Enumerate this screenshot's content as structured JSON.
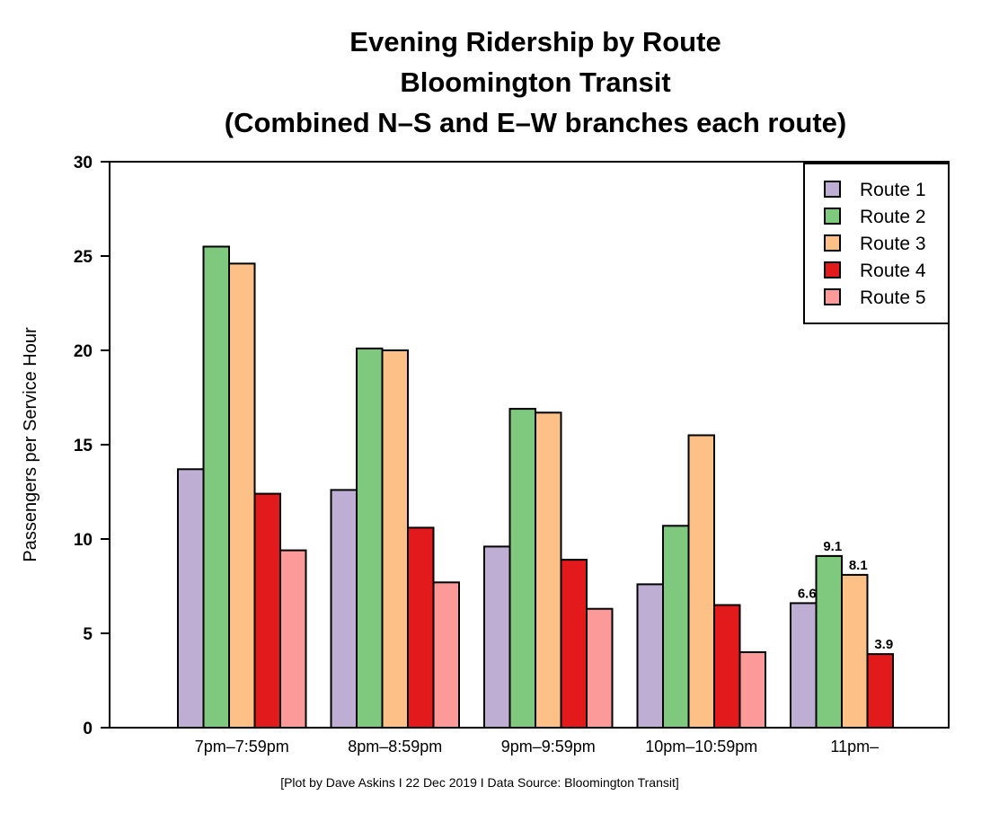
{
  "chart_data": {
    "type": "bar",
    "title_lines": [
      "Evening Ridership by Route",
      "Bloomington Transit",
      "(Combined N–S and E–W branches each route)"
    ],
    "xlabel": "",
    "ylabel": "Passengers per Service Hour",
    "ylim": [
      0,
      30
    ],
    "yticks": [
      "0",
      "5",
      "10",
      "15",
      "20",
      "25",
      "30"
    ],
    "grid": false,
    "legend_position": "top-right",
    "categories": [
      "7pm–7:59pm",
      "8pm–8:59pm",
      "9pm–9:59pm",
      "10pm–10:59pm",
      "11pm–"
    ],
    "series": [
      {
        "name": "Route 1",
        "color": "#bfaed4",
        "values": [
          13.7,
          12.6,
          9.6,
          7.6,
          6.6
        ]
      },
      {
        "name": "Route 2",
        "color": "#7fc97f",
        "values": [
          25.5,
          20.1,
          16.9,
          10.7,
          9.1
        ]
      },
      {
        "name": "Route 3",
        "color": "#fdc086",
        "values": [
          24.6,
          20.0,
          16.7,
          15.5,
          8.1
        ]
      },
      {
        "name": "Route 4",
        "color": "#e31a1c",
        "values": [
          12.4,
          10.6,
          8.9,
          6.5,
          3.9
        ]
      },
      {
        "name": "Route 5",
        "color": "#fb9a99",
        "values": [
          9.4,
          7.7,
          6.3,
          4.0,
          null
        ]
      }
    ],
    "annotations": [
      {
        "category": "11pm–",
        "series": "Route 1",
        "text": "6.6"
      },
      {
        "category": "11pm–",
        "series": "Route 2",
        "text": "9.1"
      },
      {
        "category": "11pm–",
        "series": "Route 3",
        "text": "8.1"
      },
      {
        "category": "11pm–",
        "series": "Route 4",
        "text": "3.9"
      }
    ],
    "caption": "[Plot by Dave Askins I 22 Dec 2019 I Data Source: Bloomington Transit]"
  }
}
